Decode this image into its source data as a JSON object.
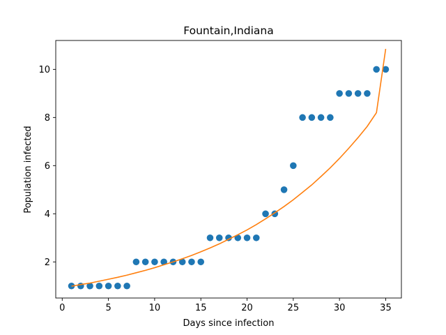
{
  "chart_data": {
    "type": "scatter",
    "title": "Fountain,Indiana",
    "xlabel": "Days since infection",
    "ylabel": "Population infected",
    "xlim": [
      -0.7,
      36.7
    ],
    "ylim": [
      0.5,
      11.2
    ],
    "xticks": [
      0,
      5,
      10,
      15,
      20,
      25,
      30,
      35
    ],
    "yticks": [
      2,
      4,
      6,
      8,
      10
    ],
    "grid": false,
    "series": [
      {
        "kind": "scatter",
        "color": "#1f77b4",
        "x": [
          1,
          2,
          3,
          4,
          5,
          6,
          7,
          8,
          9,
          10,
          11,
          12,
          13,
          14,
          15,
          16,
          17,
          18,
          19,
          20,
          21,
          22,
          23,
          24,
          25,
          26,
          27,
          28,
          29,
          30,
          31,
          32,
          33,
          34,
          35
        ],
        "y": [
          1,
          1,
          1,
          1,
          1,
          1,
          1,
          2,
          2,
          2,
          2,
          2,
          2,
          2,
          2,
          3,
          3,
          3,
          3,
          3,
          3,
          4,
          4,
          5,
          6,
          8,
          8,
          8,
          8,
          9,
          9,
          9,
          9,
          10,
          10
        ]
      },
      {
        "kind": "line",
        "color": "#ff7f0e",
        "x": [
          1,
          2,
          3,
          4,
          5,
          6,
          7,
          8,
          9,
          10,
          11,
          12,
          13,
          14,
          15,
          16,
          17,
          18,
          19,
          20,
          21,
          22,
          23,
          24,
          25,
          26,
          27,
          28,
          29,
          30,
          31,
          32,
          33,
          34,
          35
        ],
        "y": [
          0.99,
          1.06,
          1.12,
          1.2,
          1.28,
          1.36,
          1.45,
          1.55,
          1.65,
          1.76,
          1.88,
          2.0,
          2.13,
          2.27,
          2.42,
          2.58,
          2.75,
          2.94,
          3.13,
          3.33,
          3.55,
          3.79,
          4.04,
          4.3,
          4.58,
          4.89,
          5.2,
          5.55,
          5.91,
          6.3,
          6.72,
          7.16,
          7.63,
          8.2,
          10.85
        ]
      }
    ]
  }
}
